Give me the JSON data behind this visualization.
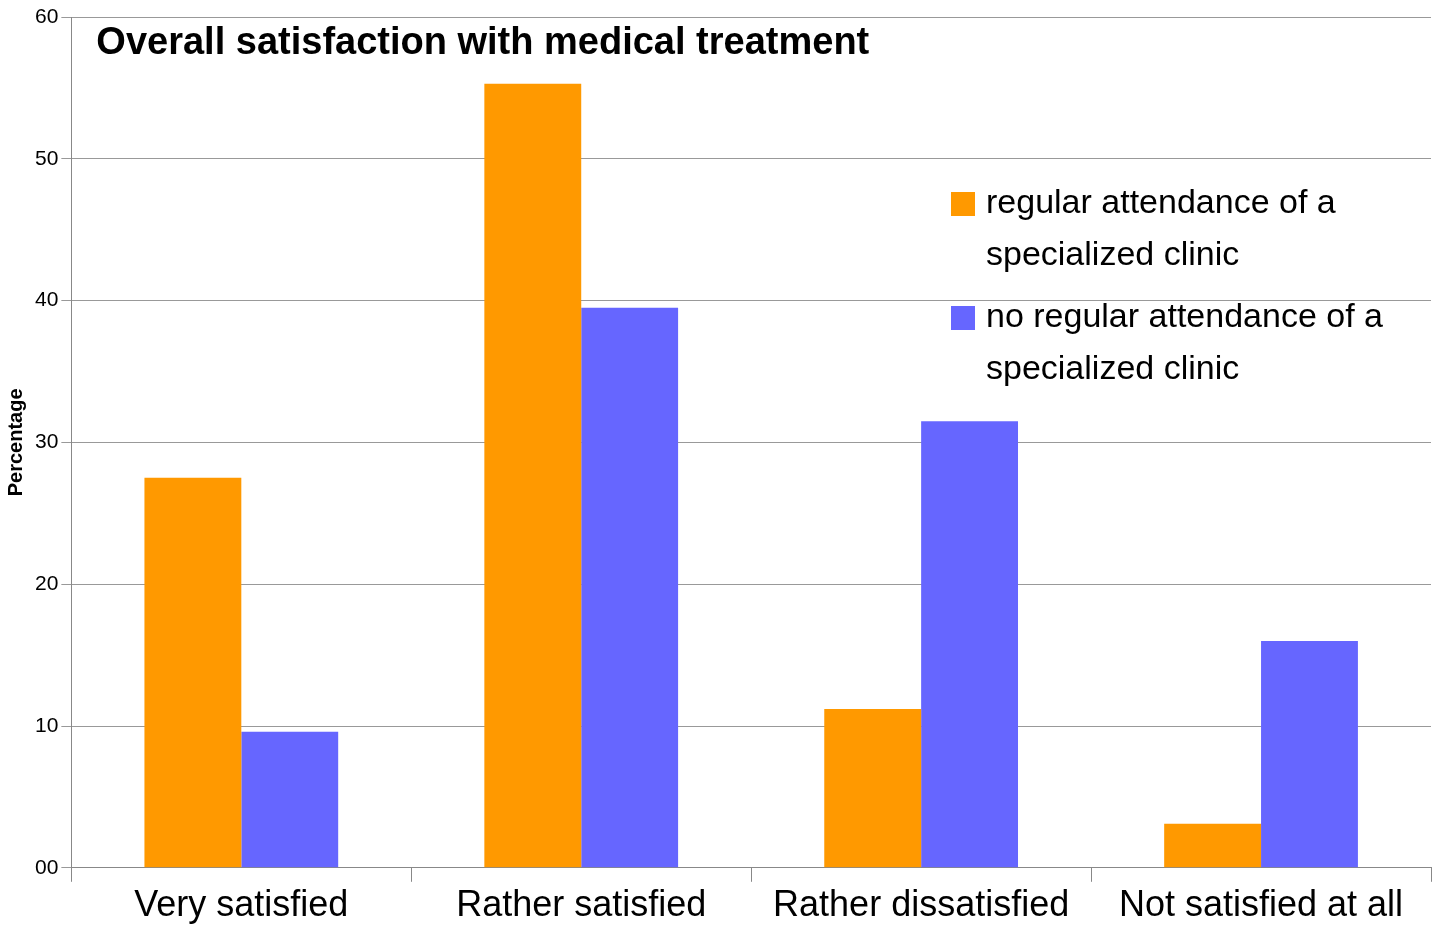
{
  "chart_data": {
    "type": "bar",
    "title": "Overall satisfaction with medical treatment",
    "ylabel": "Percentage",
    "categories": [
      "Very satisfied",
      "Rather satisfied",
      "Rather dissatisfied",
      "Not satisfied at all"
    ],
    "series": [
      {
        "name": "regular attendance of a specialized clinic",
        "color": "#ff9900",
        "values": [
          27.5,
          55.3,
          11.2,
          3.1
        ]
      },
      {
        "name": "no regular attendance of a specialized clinic",
        "color": "#6666ff",
        "values": [
          9.6,
          39.5,
          31.5,
          16.0
        ]
      }
    ],
    "ylim": [
      0,
      60
    ],
    "yticks": [
      {
        "value": 0,
        "label": "00"
      },
      10,
      20,
      30,
      40,
      50,
      60
    ],
    "grid": "y",
    "legend": "top right"
  }
}
